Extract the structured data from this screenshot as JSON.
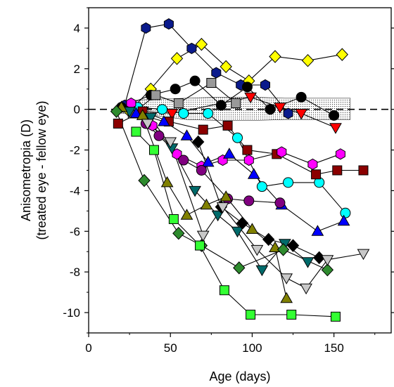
{
  "chart_data": {
    "type": "line",
    "title": "",
    "xlabel": "Age (days)",
    "ylabel_line1": "Anisometropia (D)",
    "ylabel_line2": "(treated eye - fellow eye)",
    "xlim": [
      0,
      185
    ],
    "ylim": [
      -11,
      5
    ],
    "xticks": [
      0,
      50,
      100,
      150
    ],
    "yticks": [
      4,
      2,
      0,
      -2,
      -4,
      -6,
      -8,
      -10
    ],
    "grid": false,
    "legend": "none",
    "reference_line": {
      "y": 0,
      "style": "dashed"
    },
    "normal_band": {
      "x": [
        20,
        40,
        60,
        80,
        100,
        120,
        140,
        160
      ],
      "upper": [
        0.4,
        0.5,
        0.55,
        0.6,
        0.6,
        0.55,
        0.55,
        0.55
      ],
      "lower": [
        -0.2,
        -0.3,
        -0.5,
        -0.55,
        -0.55,
        -0.5,
        -0.5,
        -0.5
      ]
    },
    "series": [
      {
        "color": "#0a1a8c",
        "marker": "hexagon",
        "points": [
          [
            22,
            0.2
          ],
          [
            35,
            4.0
          ],
          [
            49,
            4.2
          ],
          [
            63,
            3.0
          ],
          [
            78,
            1.8
          ],
          [
            93,
            1.2
          ],
          [
            108,
            1.2
          ],
          [
            122,
            -0.2
          ]
        ]
      },
      {
        "color": "#ffff00",
        "marker": "diamond",
        "points": [
          [
            25,
            -0.1
          ],
          [
            38,
            1.0
          ],
          [
            54,
            2.5
          ],
          [
            69,
            3.2
          ],
          [
            84,
            2.1
          ],
          [
            98,
            1.4
          ],
          [
            114,
            2.6
          ],
          [
            134,
            2.4
          ],
          [
            155,
            2.7
          ]
        ]
      },
      {
        "color": "#000000",
        "marker": "circle",
        "points": [
          [
            20,
            0.1
          ],
          [
            38,
            0.7
          ],
          [
            53,
            1.0
          ],
          [
            65,
            1.4
          ],
          [
            81,
            0.2
          ],
          [
            97,
            1.1
          ],
          [
            111,
            0.0
          ],
          [
            130,
            0.6
          ],
          [
            150,
            -0.3
          ]
        ]
      },
      {
        "color": "#999999",
        "marker": "square",
        "points": [
          [
            27,
            -0.2
          ],
          [
            41,
            0.7
          ],
          [
            55,
            0.3
          ],
          [
            75,
            1.3
          ],
          [
            90,
            0.3
          ]
        ]
      },
      {
        "color": "#ff0000",
        "marker": "triangle-down",
        "points": [
          [
            33,
            -0.1
          ],
          [
            51,
            -0.2
          ],
          [
            99,
            0.6
          ],
          [
            117,
            0.1
          ],
          [
            130,
            -0.2
          ],
          [
            151,
            -0.9
          ]
        ]
      },
      {
        "color": "#00ffff",
        "marker": "circle",
        "points": [
          [
            30,
            0.1
          ],
          [
            45,
            0.0
          ],
          [
            58,
            -0.2
          ],
          [
            73,
            -0.2
          ],
          [
            91,
            -1.4
          ],
          [
            106,
            -3.8
          ],
          [
            122,
            -3.6
          ],
          [
            141,
            -3.6
          ],
          [
            157,
            -5.1
          ]
        ]
      },
      {
        "color": "#8b0000",
        "marker": "square",
        "points": [
          [
            18,
            -0.7
          ],
          [
            33,
            -0.1
          ],
          [
            49,
            -0.6
          ],
          [
            70,
            -1.0
          ],
          [
            85,
            -0.8
          ],
          [
            97,
            -2.0
          ],
          [
            115,
            -2.2
          ],
          [
            139,
            -3.2
          ],
          [
            152,
            -3.0
          ],
          [
            168,
            -3.0
          ]
        ]
      },
      {
        "color": "#ff00ff",
        "marker": "hexagon",
        "points": [
          [
            26,
            0.3
          ],
          [
            39,
            -0.8
          ],
          [
            54,
            -2.2
          ],
          [
            69,
            -2.8
          ],
          [
            82,
            -2.5
          ],
          [
            98,
            -2.5
          ],
          [
            118,
            -2.1
          ],
          [
            137,
            -2.7
          ],
          [
            154,
            -2.2
          ]
        ]
      },
      {
        "color": "#0000ff",
        "marker": "triangle-up",
        "points": [
          [
            29,
            -0.2
          ],
          [
            46,
            -0.6
          ],
          [
            60,
            -1.3
          ],
          [
            73,
            -2.6
          ],
          [
            86,
            -2.2
          ],
          [
            101,
            -3.2
          ],
          [
            118,
            -4.7
          ],
          [
            140,
            -6.0
          ],
          [
            156,
            -5.5
          ]
        ]
      },
      {
        "color": "#006b6b",
        "marker": "triangle-down",
        "points": [
          [
            25,
            -0.1
          ],
          [
            38,
            -0.4
          ],
          [
            51,
            -1.9
          ],
          [
            65,
            -4.0
          ],
          [
            79,
            -5.2
          ],
          [
            91,
            -6.0
          ],
          [
            106,
            -7.9
          ],
          [
            120,
            -6.6
          ],
          [
            134,
            -7.5
          ]
        ]
      },
      {
        "color": "#800080",
        "marker": "circle",
        "points": [
          [
            35,
            -0.7
          ],
          [
            43,
            -1.3
          ],
          [
            58,
            -2.5
          ],
          [
            69,
            -3.0
          ],
          [
            85,
            -4.4
          ],
          [
            98,
            -4.5
          ],
          [
            117,
            -4.6
          ]
        ]
      },
      {
        "color": "#808000",
        "marker": "triangle-up",
        "points": [
          [
            20,
            0.1
          ],
          [
            33,
            -0.3
          ],
          [
            48,
            -3.6
          ],
          [
            60,
            -5.2
          ],
          [
            72,
            -4.7
          ],
          [
            84,
            -4.3
          ],
          [
            100,
            -5.9
          ],
          [
            114,
            -6.8
          ],
          [
            121,
            -9.3
          ]
        ]
      },
      {
        "color": "#2e8b2e",
        "marker": "diamond",
        "points": [
          [
            17,
            -0.1
          ],
          [
            34,
            -3.5
          ],
          [
            55,
            -6.1
          ],
          [
            69,
            -6.7
          ],
          [
            92,
            -7.8
          ],
          [
            119,
            -6.9
          ],
          [
            146,
            -7.9
          ]
        ]
      },
      {
        "color": "#33ff33",
        "marker": "square",
        "points": [
          [
            29,
            -1.1
          ],
          [
            40,
            -2.0
          ],
          [
            52,
            -5.4
          ],
          [
            68,
            -6.7
          ],
          [
            83,
            -8.9
          ],
          [
            99,
            -10.1
          ],
          [
            124,
            -10.1
          ],
          [
            151,
            -10.2
          ]
        ]
      },
      {
        "color": "#000000",
        "marker": "diamond",
        "points": [
          [
            67,
            -1.6
          ],
          [
            81,
            -4.8
          ],
          [
            94,
            -5.6
          ],
          [
            110,
            -6.4
          ],
          [
            125,
            -6.7
          ],
          [
            141,
            -7.3
          ]
        ]
      },
      {
        "color": "#c8c8c8",
        "marker": "triangle-down",
        "points": [
          [
            36,
            -0.7
          ],
          [
            50,
            -1.6
          ],
          [
            70,
            -6.2
          ],
          [
            82,
            -4.8
          ],
          [
            103,
            -6.9
          ],
          [
            121,
            -8.3
          ],
          [
            133,
            -8.8
          ],
          [
            146,
            -7.4
          ],
          [
            168,
            -7.1
          ]
        ]
      }
    ]
  }
}
